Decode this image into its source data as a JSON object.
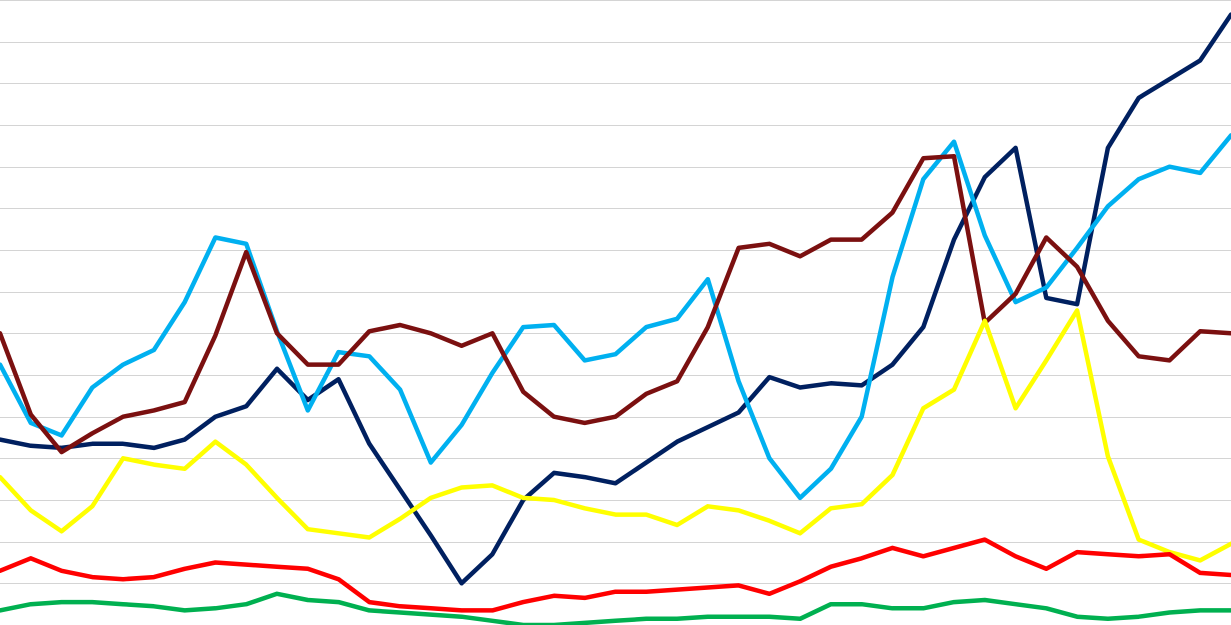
{
  "chart_data": {
    "type": "line",
    "title": "",
    "xlabel": "",
    "ylabel": "",
    "ylim": [
      0,
      15
    ],
    "grid": true,
    "gridline_step": 1,
    "legend": "none",
    "x": [
      0,
      4,
      8,
      12,
      16,
      20,
      24,
      28,
      32,
      36,
      40,
      44,
      48,
      52,
      56,
      60,
      64,
      68,
      72,
      76,
      80,
      84,
      88,
      92,
      96,
      100,
      104,
      108,
      112,
      116,
      120,
      124,
      128,
      132,
      136,
      140,
      144,
      148,
      152,
      156,
      160
    ],
    "series": [
      {
        "color": "#002060",
        "values": [
          4.45,
          4.3,
          4.25,
          4.35,
          4.35,
          4.25,
          4.45,
          5.0,
          5.25,
          6.15,
          5.4,
          5.9,
          4.35,
          3.25,
          2.15,
          1.0,
          1.7,
          3.0,
          3.65,
          3.55,
          3.4,
          3.9,
          4.4,
          4.75,
          5.1,
          5.95,
          5.7,
          5.8,
          5.75,
          6.25,
          7.15,
          9.25,
          10.75,
          11.45,
          7.85,
          7.7,
          11.45,
          12.65,
          13.1,
          13.55,
          14.65
        ]
      },
      {
        "color": "#00B0F0",
        "values": [
          6.25,
          4.85,
          4.55,
          5.7,
          6.25,
          6.6,
          7.75,
          9.3,
          9.15,
          7.05,
          5.15,
          6.55,
          6.45,
          5.65,
          3.9,
          4.8,
          6.05,
          7.15,
          7.2,
          6.35,
          6.5,
          7.15,
          7.35,
          8.3,
          5.85,
          4.0,
          3.05,
          3.75,
          5.0,
          8.35,
          10.7,
          11.6,
          9.35,
          7.75,
          8.1,
          9.05,
          10.05,
          10.7,
          11.0,
          10.85,
          11.75
        ]
      },
      {
        "color": "#7B1010",
        "values": [
          7.0,
          5.05,
          4.15,
          4.6,
          5.0,
          5.15,
          5.35,
          6.95,
          8.95,
          7.0,
          6.25,
          6.25,
          7.05,
          7.2,
          7.0,
          6.7,
          7.0,
          5.6,
          5.0,
          4.85,
          5.0,
          5.55,
          5.85,
          7.15,
          9.05,
          9.15,
          8.85,
          9.25,
          9.25,
          9.9,
          11.2,
          11.25,
          7.25,
          7.95,
          9.3,
          8.6,
          7.3,
          6.45,
          6.35,
          7.05,
          7.0
        ]
      },
      {
        "color": "#FFFF00",
        "values": [
          3.55,
          2.75,
          2.25,
          2.85,
          4.0,
          3.85,
          3.75,
          4.4,
          3.85,
          3.05,
          2.3,
          2.2,
          2.1,
          2.55,
          3.05,
          3.3,
          3.35,
          3.05,
          3.0,
          2.8,
          2.65,
          2.65,
          2.4,
          2.85,
          2.75,
          2.5,
          2.2,
          2.8,
          2.9,
          3.6,
          5.2,
          5.65,
          7.3,
          5.2,
          6.35,
          7.55,
          4.05,
          2.05,
          1.75,
          1.55,
          1.95
        ]
      },
      {
        "color": "#FF0000",
        "values": [
          1.3,
          1.6,
          1.3,
          1.15,
          1.1,
          1.15,
          1.35,
          1.5,
          1.45,
          1.4,
          1.35,
          1.1,
          0.55,
          0.45,
          0.4,
          0.35,
          0.35,
          0.55,
          0.7,
          0.65,
          0.8,
          0.8,
          0.85,
          0.9,
          0.95,
          0.75,
          1.05,
          1.4,
          1.6,
          1.85,
          1.65,
          1.85,
          2.05,
          1.65,
          1.35,
          1.75,
          1.7,
          1.65,
          1.7,
          1.25,
          1.2
        ]
      },
      {
        "color": "#00B050",
        "values": [
          0.35,
          0.5,
          0.55,
          0.55,
          0.5,
          0.45,
          0.35,
          0.4,
          0.5,
          0.75,
          0.6,
          0.55,
          0.35,
          0.3,
          0.25,
          0.2,
          0.1,
          0.0,
          0.0,
          0.05,
          0.1,
          0.15,
          0.15,
          0.2,
          0.2,
          0.2,
          0.15,
          0.5,
          0.5,
          0.4,
          0.4,
          0.55,
          0.6,
          0.5,
          0.4,
          0.2,
          0.15,
          0.2,
          0.3,
          0.35,
          0.35
        ]
      }
    ]
  }
}
